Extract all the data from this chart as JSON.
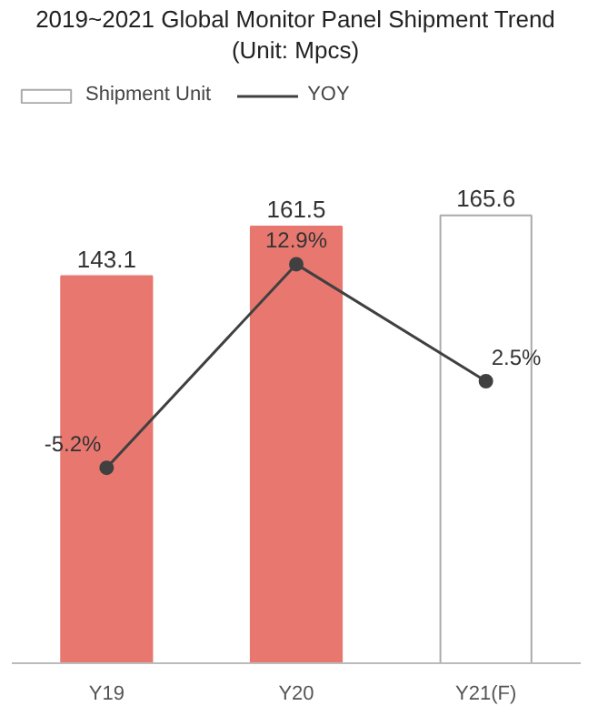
{
  "chart_data": {
    "type": "bar",
    "title": "2019~2021 Global Monitor Panel Shipment Trend\n(Unit: Mpcs)",
    "categories": [
      "Y19",
      "Y20",
      "Y21(F)"
    ],
    "series": [
      {
        "name": "Shipment Unit",
        "colors": [
          "#e8776f",
          "#e8776f",
          "#ffffff"
        ],
        "values": [
          143.1,
          161.5,
          165.6
        ],
        "value_labels": [
          "143.1",
          "161.5",
          "165.6"
        ]
      },
      {
        "name": "YOY",
        "type": "line",
        "axis": "y2",
        "color": "#404040",
        "marker": "circle",
        "values": [
          -5.2,
          12.9,
          2.5
        ],
        "value_labels": [
          "-5.2%",
          "12.9%",
          "2.5%"
        ]
      }
    ],
    "legend": "top left",
    "grid": false
  }
}
